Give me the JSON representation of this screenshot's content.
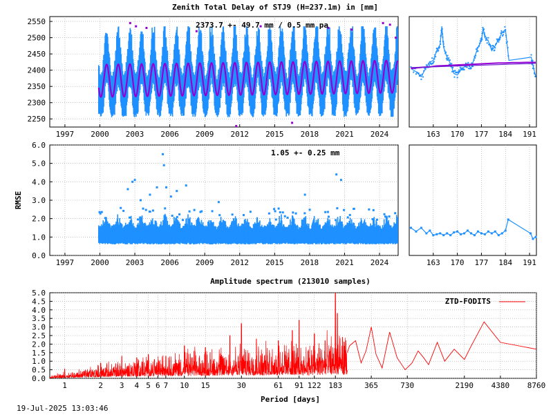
{
  "timestamp": "19-Jul-2025 13:03:46",
  "colors": {
    "obs": "#1e90ff",
    "model": "#9400d3",
    "trend": "#6a1fd0",
    "spectrum": "#ff0000",
    "grid": "#a0a0a0"
  },
  "chart_data": [
    {
      "id": "ztd-long",
      "type": "scatter",
      "title": "Zenith Total Delay of STJ9 (H=237.1m) in [mm]",
      "annotation": "2373.7 +-  49.7 mm /  0.5 mm pa",
      "xlim": [
        1995.7,
        2025.6
      ],
      "ylim": [
        2225,
        2565
      ],
      "xticks": [
        1997,
        2000,
        2003,
        2006,
        2009,
        2012,
        2015,
        2018,
        2021,
        2024
      ],
      "xtick_labels": [
        "1997",
        "2000",
        "2003",
        "2006",
        "2009",
        "2012",
        "2015",
        "2018",
        "2021",
        "2024"
      ],
      "yticks": [
        2250,
        2300,
        2350,
        2400,
        2450,
        2500,
        2550
      ],
      "ytick_labels": [
        "2250",
        "2300",
        "2350",
        "2400",
        "2450",
        "2500",
        "2550"
      ],
      "data_start": 1999.9,
      "data_end": 2025.55,
      "mean": 2373.7,
      "seasonal_amplitude": 50,
      "peak_phase": 0.58,
      "trend_mm_per_year": 0.5,
      "spread_low": 2265,
      "spread_high": 2515,
      "outliers": [
        [
          2002.6,
          2545
        ],
        [
          2003.1,
          2535
        ],
        [
          2004.0,
          2530
        ],
        [
          2008.3,
          2520
        ],
        [
          2011.7,
          2228
        ],
        [
          2013.8,
          2535
        ],
        [
          2016.5,
          2238
        ],
        [
          2019.6,
          2530
        ],
        [
          2021.6,
          2525
        ],
        [
          2024.3,
          2545
        ],
        [
          2024.9,
          2540
        ],
        [
          2025.4,
          2500
        ]
      ]
    },
    {
      "id": "ztd-recent",
      "type": "line",
      "xlim": [
        156,
        193
      ],
      "ylim": [
        2225,
        2565
      ],
      "xticks": [
        163,
        170,
        177,
        184,
        191
      ],
      "xtick_labels": [
        "163",
        "170",
        "177",
        "184",
        "191"
      ],
      "observed": [
        [
          156.5,
          2405
        ],
        [
          158,
          2395
        ],
        [
          159.5,
          2380
        ],
        [
          161,
          2410
        ],
        [
          162,
          2425
        ],
        [
          163,
          2430
        ],
        [
          164,
          2460
        ],
        [
          165,
          2480
        ],
        [
          165.5,
          2535
        ],
        [
          166,
          2470
        ],
        [
          167,
          2440
        ],
        [
          168,
          2420
        ],
        [
          169,
          2390
        ],
        [
          170,
          2385
        ],
        [
          171,
          2400
        ],
        [
          172,
          2410
        ],
        [
          173,
          2420
        ],
        [
          174,
          2405
        ],
        [
          175,
          2440
        ],
        [
          176,
          2470
        ],
        [
          177,
          2490
        ],
        [
          177.5,
          2530
        ],
        [
          178,
          2500
        ],
        [
          179,
          2490
        ],
        [
          180,
          2460
        ],
        [
          181,
          2475
        ],
        [
          182,
          2495
        ],
        [
          183,
          2515
        ],
        [
          184,
          2525
        ],
        [
          185,
          2430
        ],
        [
          191.5,
          2440
        ],
        [
          192,
          2415
        ],
        [
          192.8,
          2380
        ]
      ],
      "model": [
        [
          156.5,
          2405
        ],
        [
          158,
          2407
        ],
        [
          160,
          2409
        ],
        [
          162,
          2410
        ],
        [
          164,
          2413
        ],
        [
          166,
          2414
        ],
        [
          168,
          2415
        ],
        [
          170,
          2416
        ],
        [
          172,
          2417
        ],
        [
          174,
          2418
        ],
        [
          176,
          2419
        ],
        [
          178,
          2420
        ],
        [
          180,
          2421
        ],
        [
          182,
          2422
        ],
        [
          184,
          2422
        ],
        [
          186,
          2423
        ],
        [
          188,
          2423
        ],
        [
          190,
          2424
        ],
        [
          192,
          2424
        ],
        [
          192.8,
          2424
        ]
      ],
      "trend": [
        [
          156.5,
          2408
        ],
        [
          192.8,
          2421
        ]
      ]
    },
    {
      "id": "rmse-long",
      "type": "scatter",
      "ylabel": "RMSE",
      "annotation": "1.05 +-  0.25 mm",
      "xlim": [
        1995.7,
        2025.6
      ],
      "ylim": [
        0.0,
        6.0
      ],
      "xticks": [
        1997,
        2000,
        2003,
        2006,
        2009,
        2012,
        2015,
        2018,
        2021,
        2024
      ],
      "xtick_labels": [
        "1997",
        "2000",
        "2003",
        "2006",
        "2009",
        "2012",
        "2015",
        "2018",
        "2021",
        "2024"
      ],
      "yticks": [
        0.0,
        1.0,
        2.0,
        3.0,
        4.0,
        5.0,
        6.0
      ],
      "ytick_labels": [
        "0.0",
        "1.0",
        "2.0",
        "3.0",
        "4.0",
        "5.0",
        "6.0"
      ],
      "data_start": 1999.9,
      "data_end": 2025.55,
      "base": 1.05,
      "spread": 0.25,
      "outliers": [
        [
          2002.4,
          3.6
        ],
        [
          2002.8,
          4.0
        ],
        [
          2003.0,
          4.1
        ],
        [
          2003.5,
          3.0
        ],
        [
          2004.3,
          3.3
        ],
        [
          2004.9,
          3.7
        ],
        [
          2005.4,
          5.5
        ],
        [
          2005.5,
          4.9
        ],
        [
          2005.7,
          3.7
        ],
        [
          2006.1,
          3.2
        ],
        [
          2006.6,
          3.5
        ],
        [
          2007.4,
          3.8
        ],
        [
          2010.2,
          2.9
        ],
        [
          2017.6,
          3.3
        ],
        [
          2020.3,
          4.4
        ],
        [
          2020.7,
          4.1
        ],
        [
          2023.1,
          2.5
        ]
      ]
    },
    {
      "id": "rmse-recent",
      "type": "line",
      "xlim": [
        156,
        193
      ],
      "ylim": [
        0.0,
        6.0
      ],
      "xticks": [
        163,
        170,
        177,
        184,
        191
      ],
      "xtick_labels": [
        "163",
        "170",
        "177",
        "184",
        "191"
      ],
      "observed": [
        [
          156.5,
          1.5
        ],
        [
          158,
          1.3
        ],
        [
          159.5,
          1.5
        ],
        [
          161,
          1.2
        ],
        [
          162,
          1.35
        ],
        [
          163,
          1.1
        ],
        [
          164,
          1.15
        ],
        [
          165,
          1.2
        ],
        [
          166,
          1.1
        ],
        [
          167,
          1.2
        ],
        [
          168,
          1.1
        ],
        [
          169,
          1.25
        ],
        [
          170,
          1.3
        ],
        [
          171,
          1.15
        ],
        [
          172,
          1.2
        ],
        [
          173,
          1.35
        ],
        [
          174,
          1.2
        ],
        [
          175,
          1.1
        ],
        [
          176,
          1.3
        ],
        [
          177,
          1.2
        ],
        [
          178,
          1.15
        ],
        [
          179,
          1.3
        ],
        [
          180,
          1.2
        ],
        [
          181,
          1.3
        ],
        [
          182,
          1.1
        ],
        [
          183,
          1.2
        ],
        [
          184,
          1.35
        ],
        [
          184.8,
          1.95
        ],
        [
          191.3,
          1.2
        ],
        [
          192,
          0.9
        ],
        [
          192.8,
          1.0
        ]
      ]
    },
    {
      "id": "spectrum",
      "type": "line",
      "title": "Amplitude spectrum (213010 samples)",
      "xlabel": "Period [days]",
      "legend": "ZTD-FODITS",
      "legend_position": "top-right",
      "log_x": true,
      "xlim": [
        0.75,
        8760
      ],
      "ylim": [
        0.0,
        5.0
      ],
      "xticks": [
        1,
        2,
        3,
        4,
        5,
        6,
        7,
        10,
        15,
        30,
        61,
        91,
        122,
        183,
        365,
        730,
        2190,
        4380,
        8760
      ],
      "xtick_labels": [
        "1",
        "2",
        "3",
        "4",
        "5",
        "6",
        "7",
        "10",
        "15",
        "30",
        "61",
        "91",
        "122",
        "183",
        "365",
        "730",
        "2190",
        "4380",
        "8760"
      ],
      "yticks": [
        0.0,
        0.5,
        1.0,
        1.5,
        2.0,
        2.5,
        3.0,
        3.5,
        4.0,
        4.5,
        5.0
      ],
      "ytick_labels": [
        "0.0",
        "0.5",
        "1.0",
        "1.5",
        "2.0",
        "2.5",
        "3.0",
        "3.5",
        "4.0",
        "4.5",
        "5.0"
      ],
      "envelope": [
        [
          0.75,
          0.1
        ],
        [
          1,
          0.2
        ],
        [
          2,
          0.45
        ],
        [
          3,
          0.6
        ],
        [
          5,
          0.75
        ],
        [
          10,
          0.9
        ],
        [
          20,
          1.0
        ],
        [
          30,
          1.1
        ],
        [
          61,
          1.15
        ],
        [
          122,
          1.2
        ],
        [
          183,
          1.5
        ],
        [
          365,
          0.9
        ]
      ],
      "peaks": [
        [
          1,
          0.55
        ],
        [
          2,
          0.9
        ],
        [
          3,
          1.3
        ],
        [
          4,
          1.2
        ],
        [
          5,
          1.4
        ],
        [
          7,
          1.3
        ],
        [
          10,
          1.9
        ],
        [
          15,
          1.8
        ],
        [
          24,
          2.5
        ],
        [
          30,
          3.2
        ],
        [
          40,
          2.3
        ],
        [
          61,
          2.2
        ],
        [
          80,
          2.8
        ],
        [
          91,
          3.4
        ],
        [
          122,
          2.6
        ],
        [
          150,
          2.2
        ],
        [
          183,
          5.0
        ],
        [
          190,
          3.8
        ],
        [
          210,
          2.4
        ]
      ],
      "tail": [
        [
          240,
          1.9
        ],
        [
          270,
          2.2
        ],
        [
          300,
          0.9
        ],
        [
          330,
          1.6
        ],
        [
          365,
          3.0
        ],
        [
          400,
          1.4
        ],
        [
          450,
          0.6
        ],
        [
          520,
          2.7
        ],
        [
          600,
          1.2
        ],
        [
          700,
          0.5
        ],
        [
          800,
          0.9
        ],
        [
          900,
          1.6
        ],
        [
          1000,
          1.2
        ],
        [
          1100,
          0.8
        ],
        [
          1300,
          2.1
        ],
        [
          1500,
          1.0
        ],
        [
          1800,
          1.7
        ],
        [
          2190,
          1.1
        ],
        [
          2500,
          1.9
        ],
        [
          3200,
          3.3
        ],
        [
          4380,
          2.1
        ],
        [
          8760,
          1.7
        ]
      ]
    }
  ]
}
